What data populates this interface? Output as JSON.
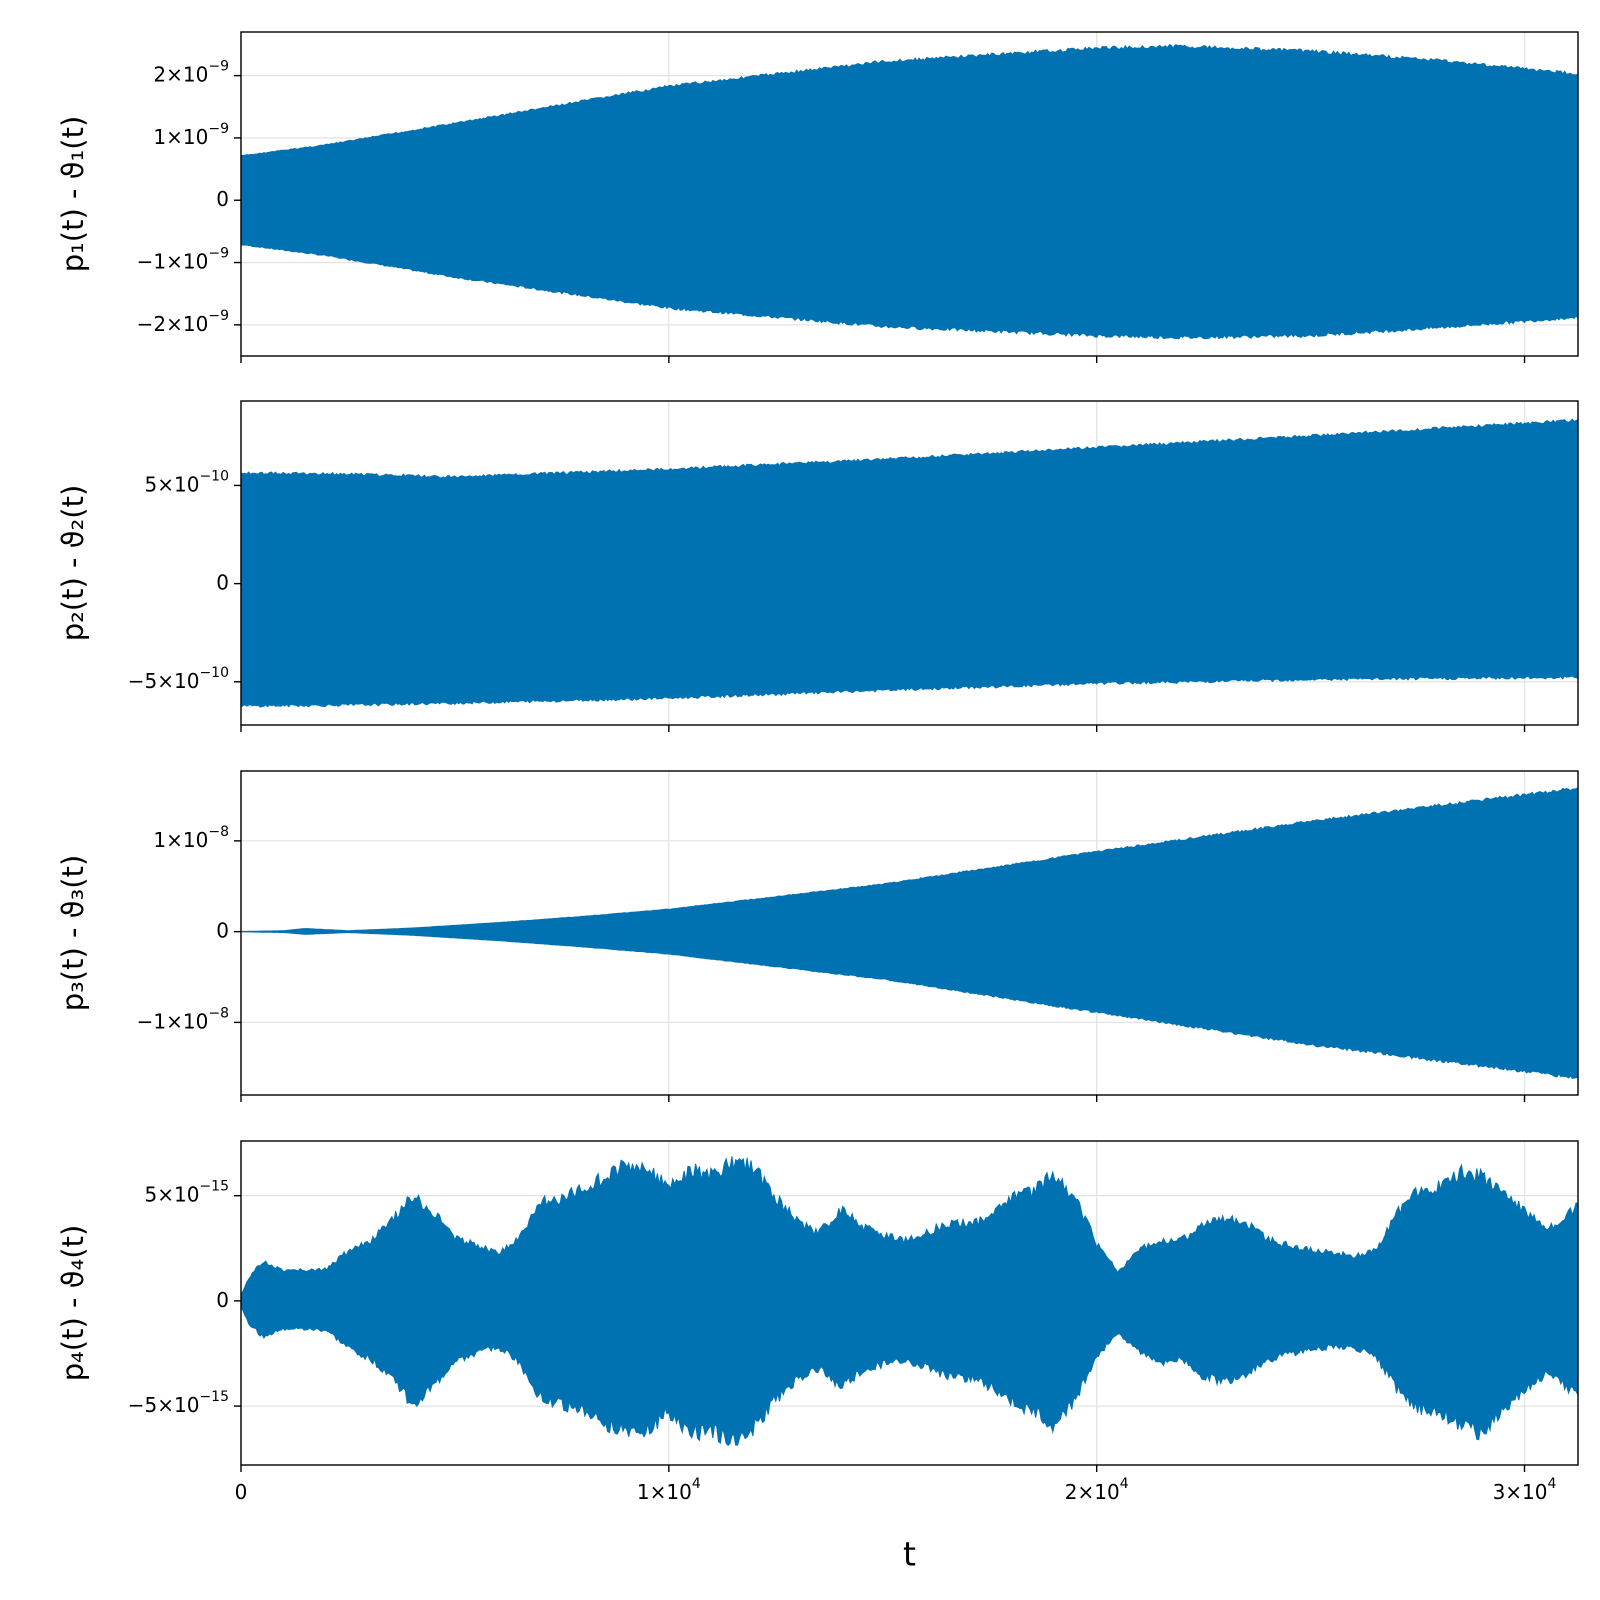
{
  "chart_data": [
    {
      "type": "area",
      "ylabel": "p₁(t) - ϑ₁(t)",
      "x_range": [
        0,
        31250
      ],
      "y_range": [
        -2.5e-09,
        2.7e-09
      ],
      "x_ticks": [
        0,
        10000,
        20000,
        30000
      ],
      "y_ticks": [
        {
          "value": -2e-09,
          "label": "−2×10",
          "exp": "−9"
        },
        {
          "value": -1e-09,
          "label": "−1×10",
          "exp": "−9"
        },
        {
          "value": 0,
          "label": "0",
          "exp": ""
        },
        {
          "value": 1e-09,
          "label": "1×10",
          "exp": "−9"
        },
        {
          "value": 2e-09,
          "label": "2×10",
          "exp": "−9"
        }
      ],
      "grid": true,
      "color": "#0072b2",
      "envelope_x": [
        0,
        2000,
        5000,
        10000,
        15000,
        20000,
        22000,
        25000,
        28000,
        31250
      ],
      "envelope_upper": [
        7.2e-10,
        9e-10,
        1.25e-09,
        1.85e-09,
        2.25e-09,
        2.47e-09,
        2.5e-09,
        2.42e-09,
        2.27e-09,
        2.05e-09
      ],
      "envelope_lower": [
        -7.2e-10,
        -9e-10,
        -1.25e-09,
        -1.75e-09,
        -2.05e-09,
        -2.2e-09,
        -2.23e-09,
        -2.2e-09,
        -2.07e-09,
        -1.9e-09
      ]
    },
    {
      "type": "area",
      "ylabel": "p₂(t) - ϑ₂(t)",
      "x_range": [
        0,
        31250
      ],
      "y_range": [
        -7.2e-10,
        9.3e-10
      ],
      "x_ticks": [
        0,
        10000,
        20000,
        30000
      ],
      "y_ticks": [
        {
          "value": -5e-10,
          "label": "−5×10",
          "exp": "−10"
        },
        {
          "value": 0,
          "label": "0",
          "exp": ""
        },
        {
          "value": 5e-10,
          "label": "5×10",
          "exp": "−10"
        }
      ],
      "grid": true,
      "color": "#0072b2",
      "envelope_x": [
        0,
        2500,
        5000,
        10000,
        15000,
        20000,
        25000,
        31250
      ],
      "envelope_upper": [
        5.7e-10,
        5.65e-10,
        5.5e-10,
        5.9e-10,
        6.4e-10,
        7e-10,
        7.6e-10,
        8.4e-10
      ],
      "envelope_lower": [
        -6.3e-10,
        -6.25e-10,
        -6.15e-10,
        -5.9e-10,
        -5.5e-10,
        -5.15e-10,
        -4.95e-10,
        -4.85e-10
      ]
    },
    {
      "type": "area",
      "ylabel": "p₃(t) - ϑ₃(t)",
      "x_range": [
        0,
        31250
      ],
      "y_range": [
        -1.8e-08,
        1.77e-08
      ],
      "x_ticks": [
        0,
        10000,
        20000,
        30000
      ],
      "y_ticks": [
        {
          "value": -1e-08,
          "label": "−1×10",
          "exp": "−8"
        },
        {
          "value": 0,
          "label": "0",
          "exp": ""
        },
        {
          "value": 1e-08,
          "label": "1×10",
          "exp": "−8"
        }
      ],
      "grid": true,
      "color": "#0072b2",
      "envelope_x": [
        0,
        1000,
        1500,
        2500,
        4000,
        6000,
        8000,
        10000,
        15000,
        20000,
        25000,
        31250
      ],
      "envelope_upper": [
        2e-11,
        1e-10,
        3.5e-10,
        1e-10,
        4e-10,
        1e-09,
        1.7e-09,
        2.5e-09,
        5.3e-09,
        8.9e-09,
        1.23e-08,
        1.6e-08
      ],
      "envelope_lower": [
        -2e-11,
        -1e-10,
        -3e-10,
        -1e-10,
        -4e-10,
        -1e-09,
        -1.7e-09,
        -2.5e-09,
        -5.3e-09,
        -9e-09,
        -1.26e-08,
        -1.63e-08
      ]
    },
    {
      "type": "area",
      "ylabel": "p₄(t) - ϑ₄(t)",
      "xlabel": "t",
      "x_range": [
        0,
        31250
      ],
      "y_range": [
        -7.8e-15,
        7.6e-15
      ],
      "x_ticks": [
        {
          "value": 0,
          "label": "0",
          "exp": ""
        },
        {
          "value": 10000,
          "label": "1×10",
          "exp": "4"
        },
        {
          "value": 20000,
          "label": "2×10",
          "exp": "4"
        },
        {
          "value": 30000,
          "label": "3×10",
          "exp": "4"
        }
      ],
      "y_ticks": [
        {
          "value": -5e-15,
          "label": "−5×10",
          "exp": "−15"
        },
        {
          "value": 0,
          "label": "0",
          "exp": ""
        },
        {
          "value": 5e-15,
          "label": "5×10",
          "exp": "−15"
        }
      ],
      "grid": true,
      "color": "#0072b2",
      "envelope_x": [
        0,
        200,
        500,
        1000,
        2000,
        2500,
        3000,
        3500,
        4000,
        4500,
        5000,
        5500,
        6000,
        6500,
        7000,
        7500,
        8000,
        8500,
        9000,
        9500,
        10000,
        10500,
        11000,
        11500,
        12000,
        12500,
        13000,
        13500,
        14000,
        14500,
        15000,
        15500,
        16000,
        16500,
        17000,
        17500,
        18000,
        18500,
        19000,
        19500,
        20000,
        20500,
        21000,
        21500,
        22000,
        22500,
        23000,
        23500,
        24000,
        24500,
        25000,
        25500,
        26000,
        26500,
        27000,
        27500,
        28000,
        28500,
        29000,
        29500,
        30000,
        30500,
        31250
      ],
      "envelope_upper": [
        3e-16,
        1.2e-15,
        2e-15,
        1.5e-15,
        1.6e-15,
        2.5e-15,
        3e-15,
        4e-15,
        5.3e-15,
        4.5e-15,
        3.2e-15,
        2.8e-15,
        2.4e-15,
        3.2e-15,
        5e-15,
        5.2e-15,
        5.8e-15,
        6.2e-15,
        6.9e-15,
        6.6e-15,
        5.7e-15,
        6.6e-15,
        6.5e-15,
        7e-15,
        6.7e-15,
        5.2e-15,
        4e-15,
        3.4e-15,
        4.6e-15,
        3.8e-15,
        3.3e-15,
        3.1e-15,
        3.4e-15,
        3.9e-15,
        3.9e-15,
        4.2e-15,
        5.2e-15,
        5.5e-15,
        6.4e-15,
        5.2e-15,
        2.9e-15,
        1.5e-15,
        2.6e-15,
        3e-15,
        3.1e-15,
        3.9e-15,
        4.2e-15,
        3.9e-15,
        3.1e-15,
        2.8e-15,
        2.6e-15,
        2.4e-15,
        2.3e-15,
        2.5e-15,
        4.4e-15,
        5.5e-15,
        5.8e-15,
        6.5e-15,
        6.3e-15,
        5.6e-15,
        4.6e-15,
        3.6e-15,
        4.8e-15
      ],
      "envelope_lower": [
        -3e-16,
        -1.2e-15,
        -1.8e-15,
        -1.4e-15,
        -1.5e-15,
        -2.4e-15,
        -2.9e-15,
        -3.8e-15,
        -5.2e-15,
        -4.4e-15,
        -3e-15,
        -2.7e-15,
        -2.3e-15,
        -3.1e-15,
        -4.9e-15,
        -5.2e-15,
        -5.6e-15,
        -6.2e-15,
        -6.6e-15,
        -6.5e-15,
        -5.6e-15,
        -6.7e-15,
        -6.6e-15,
        -7e-15,
        -6.4e-15,
        -5e-15,
        -4e-15,
        -3.4e-15,
        -4.4e-15,
        -3.6e-15,
        -3.2e-15,
        -3e-15,
        -3.3e-15,
        -3.8e-15,
        -3.9e-15,
        -4.3e-15,
        -5.1e-15,
        -5.6e-15,
        -6.3e-15,
        -5e-15,
        -2.8e-15,
        -1.6e-15,
        -2.6e-15,
        -3.1e-15,
        -3e-15,
        -3.8e-15,
        -4.1e-15,
        -3.7e-15,
        -3e-15,
        -2.7e-15,
        -2.5e-15,
        -2.3e-15,
        -2.4e-15,
        -2.7e-15,
        -4.4e-15,
        -5.4e-15,
        -5.6e-15,
        -6.2e-15,
        -6.7e-15,
        -5.5e-15,
        -4.5e-15,
        -3.7e-15,
        -4.7e-15
      ]
    }
  ]
}
